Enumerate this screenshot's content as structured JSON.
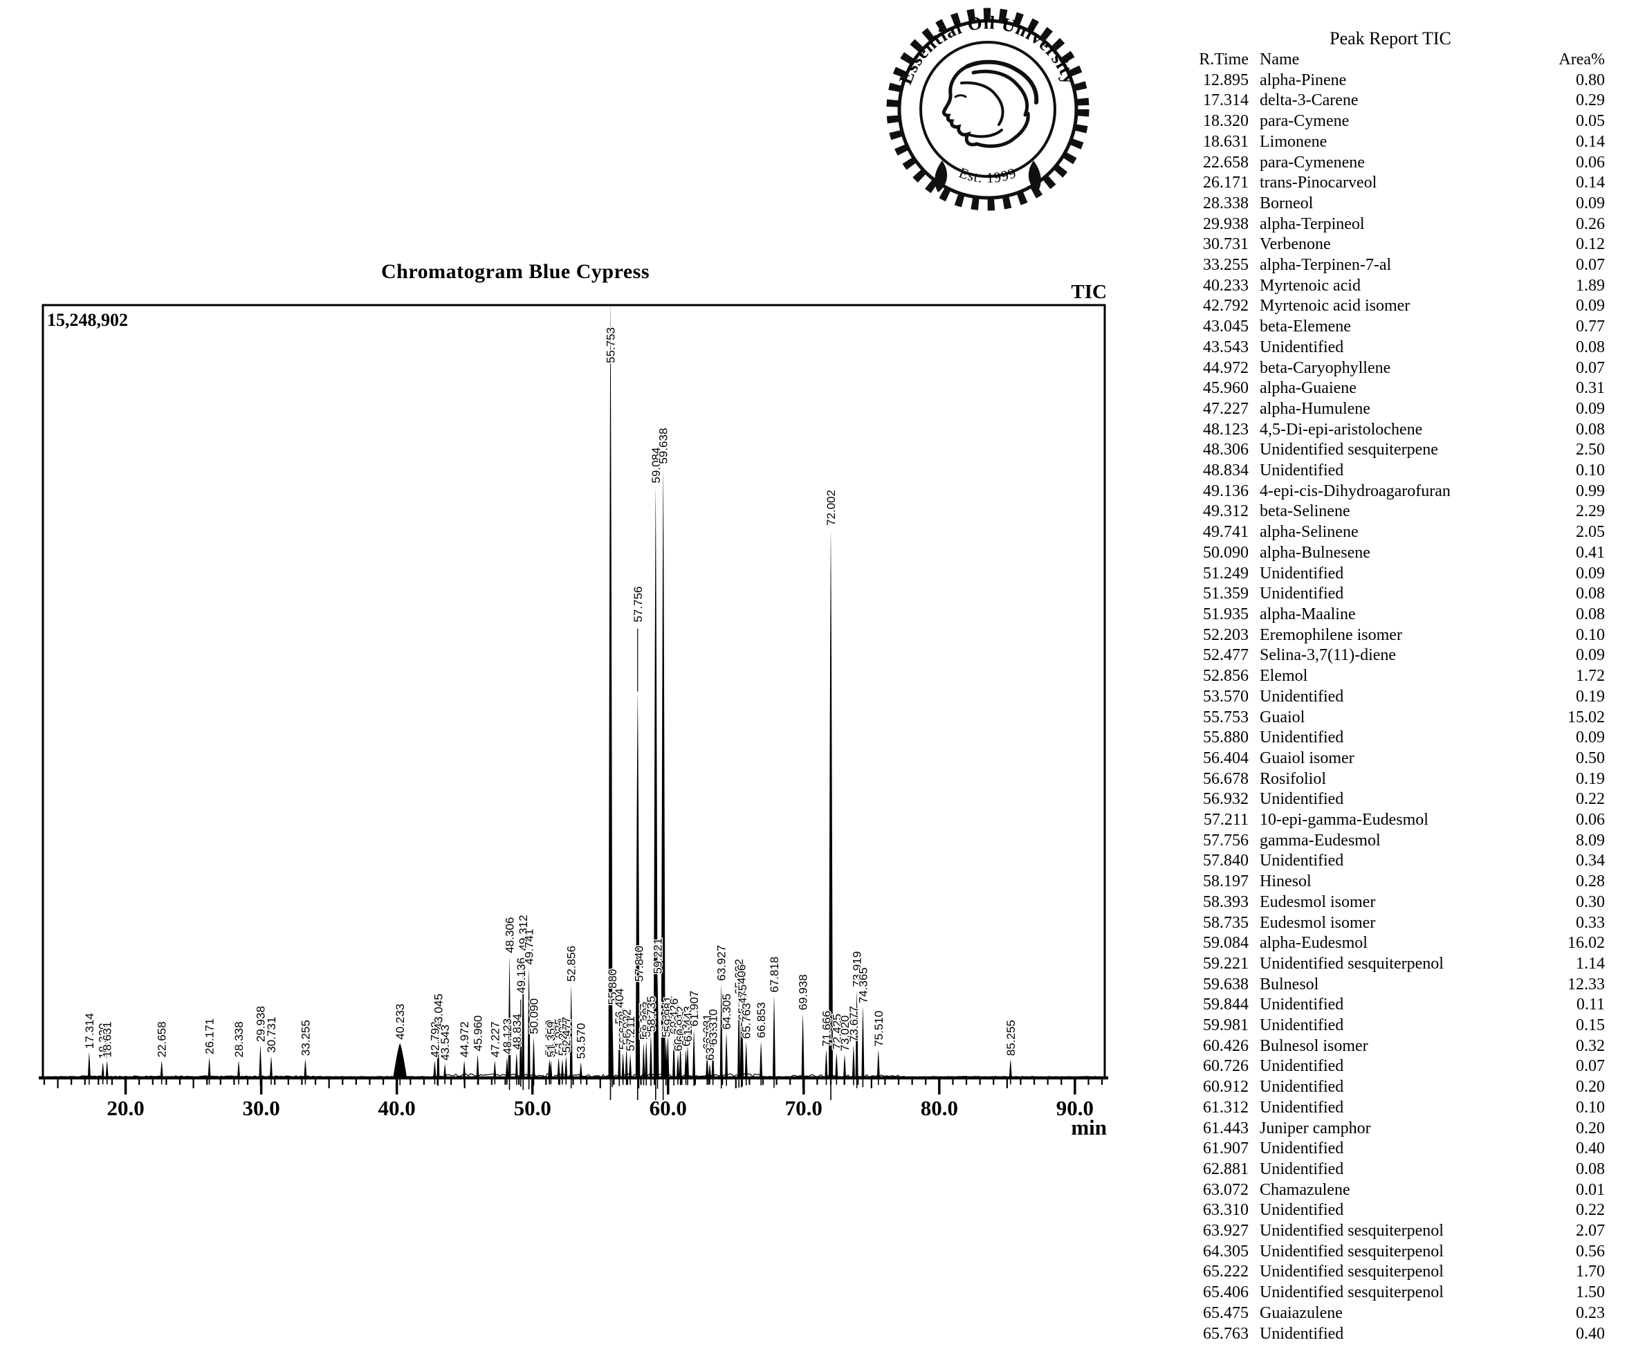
{
  "logo": {
    "ring_text": "Essential Oil University",
    "est_text": "Est. 1999"
  },
  "peak_report": {
    "title": "Peak Report TIC",
    "columns": [
      "R.Time",
      "Name",
      "Area%"
    ],
    "rows": [
      [
        "12.895",
        "alpha-Pinene",
        "0.80"
      ],
      [
        "17.314",
        "delta-3-Carene",
        "0.29"
      ],
      [
        "18.320",
        "para-Cymene",
        "0.05"
      ],
      [
        "18.631",
        "Limonene",
        "0.14"
      ],
      [
        "22.658",
        "para-Cymenene",
        "0.06"
      ],
      [
        "26.171",
        "trans-Pinocarveol",
        "0.14"
      ],
      [
        "28.338",
        "Borneol",
        "0.09"
      ],
      [
        "29.938",
        "alpha-Terpineol",
        "0.26"
      ],
      [
        "30.731",
        "Verbenone",
        "0.12"
      ],
      [
        "33.255",
        "alpha-Terpinen-7-al",
        "0.07"
      ],
      [
        "40.233",
        "Myrtenoic acid",
        "1.89"
      ],
      [
        "42.792",
        "Myrtenoic acid isomer",
        "0.09"
      ],
      [
        "43.045",
        "beta-Elemene",
        "0.77"
      ],
      [
        "43.543",
        "Unidentified",
        "0.08"
      ],
      [
        "44.972",
        "beta-Caryophyllene",
        "0.07"
      ],
      [
        "45.960",
        "alpha-Guaiene",
        "0.31"
      ],
      [
        "47.227",
        "alpha-Humulene",
        "0.09"
      ],
      [
        "48.123",
        "4,5-Di-epi-aristolochene",
        "0.08"
      ],
      [
        "48.306",
        "Unidentified sesquiterpene",
        "2.50"
      ],
      [
        "48.834",
        "Unidentified",
        "0.10"
      ],
      [
        "49.136",
        "4-epi-cis-Dihydroagarofuran",
        "0.99"
      ],
      [
        "49.312",
        "beta-Selinene",
        "2.29"
      ],
      [
        "49.741",
        "alpha-Selinene",
        "2.05"
      ],
      [
        "50.090",
        "alpha-Bulnesene",
        "0.41"
      ],
      [
        "51.249",
        "Unidentified",
        "0.09"
      ],
      [
        "51.359",
        "Unidentified",
        "0.08"
      ],
      [
        "51.935",
        "alpha-Maaline",
        "0.08"
      ],
      [
        "52.203",
        "Eremophilene isomer",
        "0.10"
      ],
      [
        "52.477",
        "Selina-3,7(11)-diene",
        "0.09"
      ],
      [
        "52.856",
        "Elemol",
        "1.72"
      ],
      [
        "53.570",
        "Unidentified",
        "0.19"
      ],
      [
        "55.753",
        "Guaiol",
        "15.02"
      ],
      [
        "55.880",
        "Unidentified",
        "0.09"
      ],
      [
        "56.404",
        "Guaiol isomer",
        "0.50"
      ],
      [
        "56.678",
        "Rosifoliol",
        "0.19"
      ],
      [
        "56.932",
        "Unidentified",
        "0.22"
      ],
      [
        "57.211",
        "10-epi-gamma-Eudesmol",
        "0.06"
      ],
      [
        "57.756",
        "gamma-Eudesmol",
        "8.09"
      ],
      [
        "57.840",
        "Unidentified",
        "0.34"
      ],
      [
        "58.197",
        "Hinesol",
        "0.28"
      ],
      [
        "58.393",
        "Eudesmol isomer",
        "0.30"
      ],
      [
        "58.735",
        "Eudesmol isomer",
        "0.33"
      ],
      [
        "59.084",
        "alpha-Eudesmol",
        "16.02"
      ],
      [
        "59.221",
        "Unidentified sesquiterpenol",
        "1.14"
      ],
      [
        "59.638",
        "Bulnesol",
        "12.33"
      ],
      [
        "59.844",
        "Unidentified",
        "0.11"
      ],
      [
        "59.981",
        "Unidentified",
        "0.15"
      ],
      [
        "60.426",
        "Bulnesol isomer",
        "0.32"
      ],
      [
        "60.726",
        "Unidentified",
        "0.07"
      ],
      [
        "60.912",
        "Unidentified",
        "0.20"
      ],
      [
        "61.312",
        "Unidentified",
        "0.10"
      ],
      [
        "61.443",
        "Juniper camphor",
        "0.20"
      ],
      [
        "61.907",
        "Unidentified",
        "0.40"
      ],
      [
        "62.881",
        "Unidentified",
        "0.08"
      ],
      [
        "63.072",
        "Chamazulene",
        "0.01"
      ],
      [
        "63.310",
        "Unidentified",
        "0.22"
      ],
      [
        "63.927",
        "Unidentified sesquiterpenol",
        "2.07"
      ],
      [
        "64.305",
        "Unidentified sesquiterpenol",
        "0.56"
      ],
      [
        "65.222",
        "Unidentified sesquiterpenol",
        "1.70"
      ],
      [
        "65.406",
        "Unidentified sesquiterpenol",
        "1.50"
      ],
      [
        "65.475",
        "Guaiazulene",
        "0.23"
      ],
      [
        "65.763",
        "Unidentified",
        "0.40"
      ]
    ]
  },
  "chart_data": {
    "type": "line",
    "subtype": "gc-chromatogram",
    "title": "Chromatogram Blue Cypress",
    "signal_label": "TIC",
    "y_axis_max_counts_label": "15,248,902",
    "xlabel": "min",
    "x_range_minutes": [
      13.9,
      92.2
    ],
    "x_major_tick_values": [
      20,
      30,
      40,
      50,
      60,
      70,
      80,
      90
    ],
    "x_major_tick_labels": [
      "20.0",
      "30.0",
      "40.0",
      "50.0",
      "60.0",
      "70.0",
      "80.0",
      "90.0"
    ],
    "grid": false,
    "legend": false,
    "peak_height_units": "fraction of full-scale (15,248,902 counts)",
    "peaks": [
      {
        "rt": 17.314,
        "h": 0.033
      },
      {
        "rt": 18.32,
        "h": 0.02
      },
      {
        "rt": 18.631,
        "h": 0.022
      },
      {
        "rt": 22.658,
        "h": 0.022
      },
      {
        "rt": 26.171,
        "h": 0.026
      },
      {
        "rt": 28.338,
        "h": 0.022
      },
      {
        "rt": 29.938,
        "h": 0.042
      },
      {
        "rt": 30.731,
        "h": 0.028
      },
      {
        "rt": 33.255,
        "h": 0.024
      },
      {
        "rt": 40.233,
        "h": 0.045,
        "w": 10
      },
      {
        "rt": 42.792,
        "h": 0.022
      },
      {
        "rt": 43.045,
        "h": 0.058
      },
      {
        "rt": 43.543,
        "h": 0.018
      },
      {
        "rt": 44.972,
        "h": 0.022
      },
      {
        "rt": 45.96,
        "h": 0.03
      },
      {
        "rt": 47.227,
        "h": 0.022
      },
      {
        "rt": 48.123,
        "h": 0.026
      },
      {
        "rt": 48.306,
        "h": 0.157
      },
      {
        "rt": 48.834,
        "h": 0.032
      },
      {
        "rt": 49.136,
        "h": 0.078,
        "lift": 30
      },
      {
        "rt": 49.312,
        "h": 0.16
      },
      {
        "rt": 49.741,
        "h": 0.142
      },
      {
        "rt": 50.09,
        "h": 0.052
      },
      {
        "rt": 51.249,
        "h": 0.024
      },
      {
        "rt": 51.359,
        "h": 0.022
      },
      {
        "rt": 51.935,
        "h": 0.026
      },
      {
        "rt": 52.203,
        "h": 0.024
      },
      {
        "rt": 52.477,
        "h": 0.028
      },
      {
        "rt": 52.856,
        "h": 0.12
      },
      {
        "rt": 53.57,
        "h": 0.02
      },
      {
        "rt": 55.753,
        "h": 1.0
      },
      {
        "rt": 55.88,
        "h": 0.09
      },
      {
        "rt": 56.404,
        "h": 0.065
      },
      {
        "rt": 56.678,
        "h": 0.032
      },
      {
        "rt": 56.932,
        "h": 0.038
      },
      {
        "rt": 57.211,
        "h": 0.03
      },
      {
        "rt": 57.756,
        "h": 0.5,
        "lift": 95
      },
      {
        "rt": 57.84,
        "h": 0.12
      },
      {
        "rt": 58.197,
        "h": 0.045
      },
      {
        "rt": 58.393,
        "h": 0.048
      },
      {
        "rt": 58.735,
        "h": 0.055
      },
      {
        "rt": 59.084,
        "h": 0.765
      },
      {
        "rt": 59.221,
        "h": 0.13
      },
      {
        "rt": 59.638,
        "h": 0.79
      },
      {
        "rt": 59.844,
        "h": 0.048
      },
      {
        "rt": 59.981,
        "h": 0.055
      },
      {
        "rt": 60.426,
        "h": 0.052
      },
      {
        "rt": 60.726,
        "h": 0.03
      },
      {
        "rt": 60.912,
        "h": 0.042
      },
      {
        "rt": 61.312,
        "h": 0.036
      },
      {
        "rt": 61.443,
        "h": 0.042
      },
      {
        "rt": 61.907,
        "h": 0.062
      },
      {
        "rt": 62.881,
        "h": 0.032
      },
      {
        "rt": 63.072,
        "h": 0.018
      },
      {
        "rt": 63.31,
        "h": 0.038
      },
      {
        "rt": 63.927,
        "h": 0.121
      },
      {
        "rt": 64.305,
        "h": 0.058
      },
      {
        "rt": 65.222,
        "h": 0.103
      },
      {
        "rt": 65.406,
        "h": 0.096
      },
      {
        "rt": 65.475,
        "h": 0.07
      },
      {
        "rt": 65.763,
        "h": 0.046
      },
      {
        "rt": 66.853,
        "h": 0.047
      },
      {
        "rt": 67.818,
        "h": 0.106
      },
      {
        "rt": 69.938,
        "h": 0.083
      },
      {
        "rt": 71.666,
        "h": 0.036
      },
      {
        "rt": 72.002,
        "h": 0.71
      },
      {
        "rt": 72.425,
        "h": 0.032
      },
      {
        "rt": 73.02,
        "h": 0.03
      },
      {
        "rt": 73.677,
        "h": 0.042
      },
      {
        "rt": 73.919,
        "h": 0.113
      },
      {
        "rt": 74.365,
        "h": 0.092
      },
      {
        "rt": 75.51,
        "h": 0.036
      },
      {
        "rt": 85.255,
        "h": 0.024
      }
    ]
  }
}
